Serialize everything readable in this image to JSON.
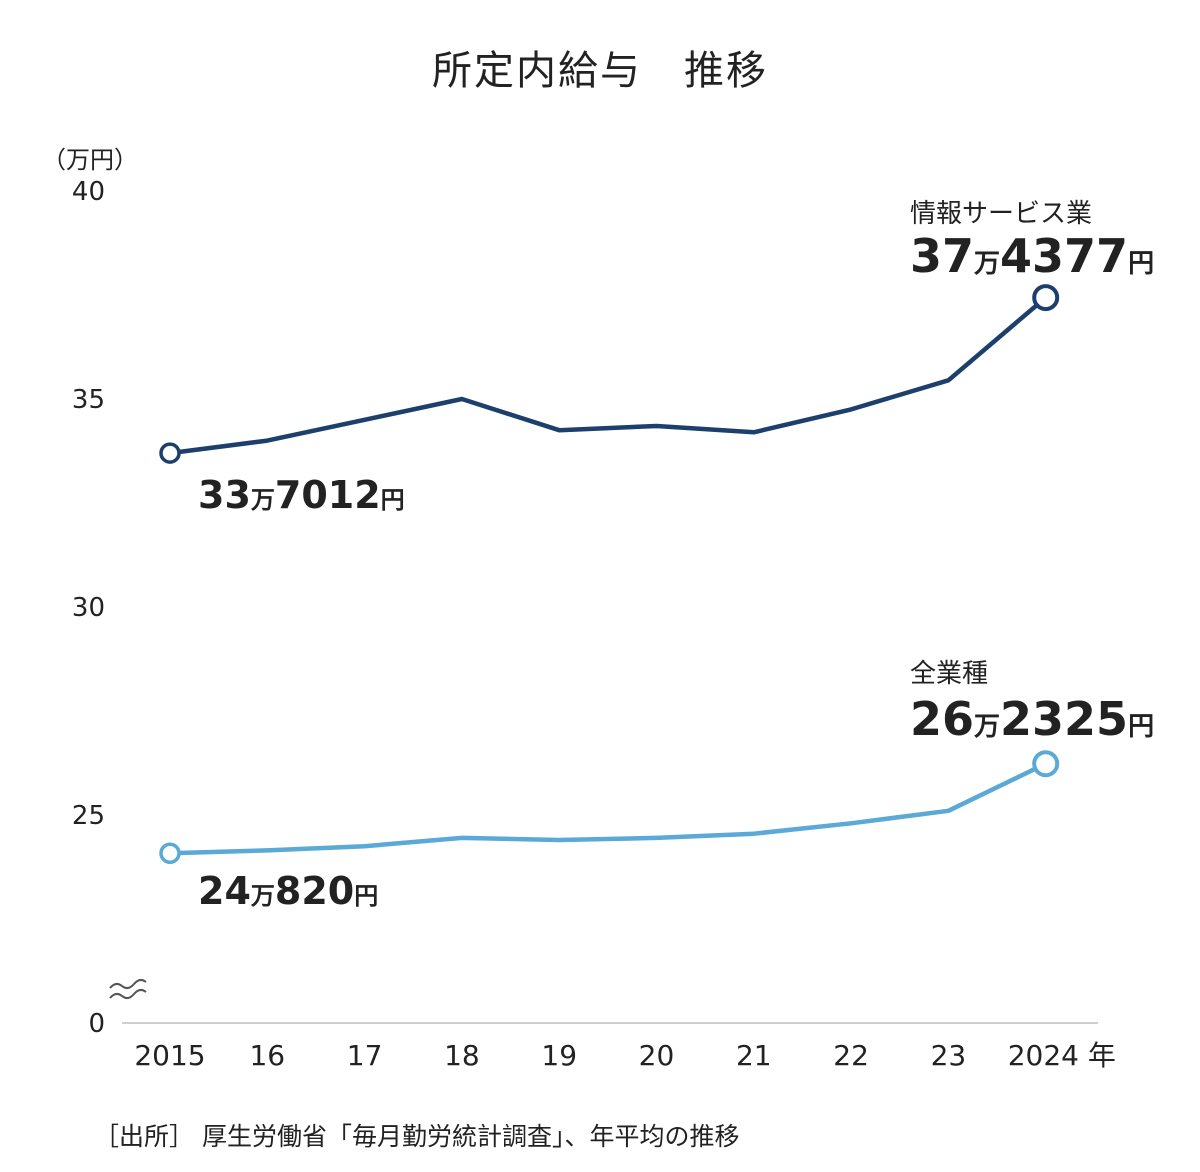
{
  "chart_data": {
    "type": "line",
    "title": "所定内給与　推移",
    "unit_label": "（万円）",
    "xlabel_suffix": "年",
    "categories": [
      "2015",
      "16",
      "17",
      "18",
      "19",
      "20",
      "21",
      "22",
      "23",
      "2024"
    ],
    "ylim": [
      0,
      40
    ],
    "yticks": [
      0,
      25,
      30,
      35,
      40
    ],
    "axis_break": true,
    "grid": false,
    "series": [
      {
        "name": "情報サービス業",
        "color": "#1c3f6e",
        "values": [
          33.7,
          34.0,
          34.5,
          35.0,
          34.25,
          34.35,
          34.2,
          34.75,
          35.45,
          37.4377
        ],
        "start_label": {
          "num1": "33",
          "man": "万",
          "num2": "7012",
          "yen": "円"
        },
        "end_label": {
          "num1": "37",
          "man": "万",
          "num2": "4377",
          "yen": "円"
        }
      },
      {
        "name": "全業種",
        "color": "#5aa9d6",
        "values": [
          24.08,
          24.15,
          24.25,
          24.45,
          24.4,
          24.45,
          24.55,
          24.8,
          25.1,
          26.2325
        ],
        "start_label": {
          "num1": "24",
          "man": "万",
          "num2": "820",
          "yen": "円"
        },
        "end_label": {
          "num1": "26",
          "man": "万",
          "num2": "2325",
          "yen": "円"
        }
      }
    ],
    "source": "［出所］ 厚生労働省「毎月勤労統計調査」、年平均の推移"
  }
}
